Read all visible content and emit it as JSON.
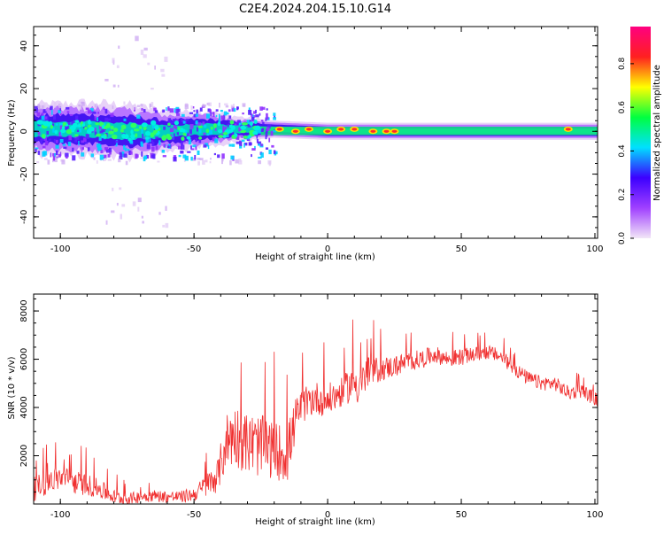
{
  "figure_title": "C2E4.2024.204.15.10.G14",
  "chart_data": [
    {
      "type": "heatmap",
      "xlabel": "Height of straight line (km)",
      "ylabel": "Frequency (Hz)",
      "xlim": [
        -110,
        101
      ],
      "ylim": [
        -50,
        49
      ],
      "x_ticks": [
        -100,
        -50,
        0,
        50,
        100
      ],
      "y_ticks": [
        -40,
        -20,
        0,
        20,
        40
      ],
      "colorbar": {
        "label": "Normalized spectral amplitude",
        "range": [
          0,
          0.97
        ],
        "ticks": [
          0.0,
          0.2,
          0.4,
          0.6,
          0.8
        ],
        "colormap": [
          "#f2e6f7",
          "#a040ff",
          "#3c00ff",
          "#00e0ff",
          "#00ff40",
          "#ffff00",
          "#ff2020",
          "#ff0080"
        ]
      },
      "band_profile": [
        {
          "x": -110,
          "center": 1,
          "halfwidth": 11
        },
        {
          "x": -90,
          "center": 1,
          "halfwidth": 12
        },
        {
          "x": -75,
          "center": 0,
          "halfwidth": 12
        },
        {
          "x": -60,
          "center": 0,
          "halfwidth": 9
        },
        {
          "x": -45,
          "center": 1,
          "halfwidth": 8
        },
        {
          "x": -30,
          "center": 1,
          "halfwidth": 5
        },
        {
          "x": -20,
          "center": 1,
          "halfwidth": 4
        },
        {
          "x": 0,
          "center": 0,
          "halfwidth": 4
        },
        {
          "x": 50,
          "center": 0,
          "halfwidth": 4
        },
        {
          "x": 101,
          "center": 0,
          "halfwidth": 4
        }
      ],
      "peaks": [
        {
          "x": -18,
          "y": 1,
          "value": 0.85
        },
        {
          "x": -12,
          "y": 0,
          "value": 0.85
        },
        {
          "x": -7,
          "y": 1,
          "value": 0.8
        },
        {
          "x": 0,
          "y": 0,
          "value": 0.82
        },
        {
          "x": 5,
          "y": 1,
          "value": 0.9
        },
        {
          "x": 10,
          "y": 1,
          "value": 0.85
        },
        {
          "x": 17,
          "y": 0,
          "value": 0.8
        },
        {
          "x": 22,
          "y": 0,
          "value": 0.75
        },
        {
          "x": 25,
          "y": 0,
          "value": 0.72
        },
        {
          "x": 90,
          "y": 1,
          "value": 0.65
        }
      ]
    },
    {
      "type": "line",
      "xlabel": "Height of straight line (km)",
      "ylabel": "SNR (10 * v/v)",
      "xlim": [
        -110,
        101
      ],
      "ylim": [
        0,
        8700
      ],
      "x_ticks": [
        -100,
        -50,
        0,
        50,
        100
      ],
      "y_ticks": [
        2000,
        4000,
        6000,
        8000
      ],
      "line_color": "#f03030",
      "series": [
        {
          "x": [
            -110,
            -105,
            -100,
            -95,
            -90,
            -85,
            -80,
            -75,
            -70,
            -65,
            -60,
            -55,
            -50,
            -45,
            -41,
            -38,
            -35,
            -30,
            -25,
            -20,
            -15,
            -12,
            -10,
            -5,
            0,
            5,
            10,
            12,
            15,
            20,
            25,
            30,
            35,
            40,
            45,
            50,
            55,
            60,
            65,
            70,
            75,
            80,
            85,
            90,
            95,
            101
          ],
          "y": [
            600,
            900,
            1100,
            900,
            800,
            600,
            300,
            200,
            300,
            350,
            300,
            300,
            400,
            800,
            1200,
            2600,
            2900,
            2500,
            2400,
            2200,
            2100,
            3500,
            4000,
            4400,
            4300,
            4600,
            5100,
            4900,
            5400,
            5600,
            5700,
            5900,
            6000,
            6200,
            6000,
            6100,
            6200,
            6300,
            6100,
            5600,
            5200,
            5000,
            5000,
            4600,
            4700,
            4300
          ],
          "noise": [
            500,
            500,
            500,
            500,
            450,
            400,
            300,
            250,
            250,
            250,
            250,
            250,
            300,
            500,
            700,
            1200,
            1300,
            1300,
            1300,
            1200,
            1200,
            900,
            700,
            700,
            700,
            600,
            800,
            900,
            700,
            500,
            450,
            400,
            400,
            350,
            350,
            350,
            300,
            300,
            300,
            300,
            300,
            300,
            300,
            300,
            300,
            300
          ]
        }
      ]
    }
  ]
}
